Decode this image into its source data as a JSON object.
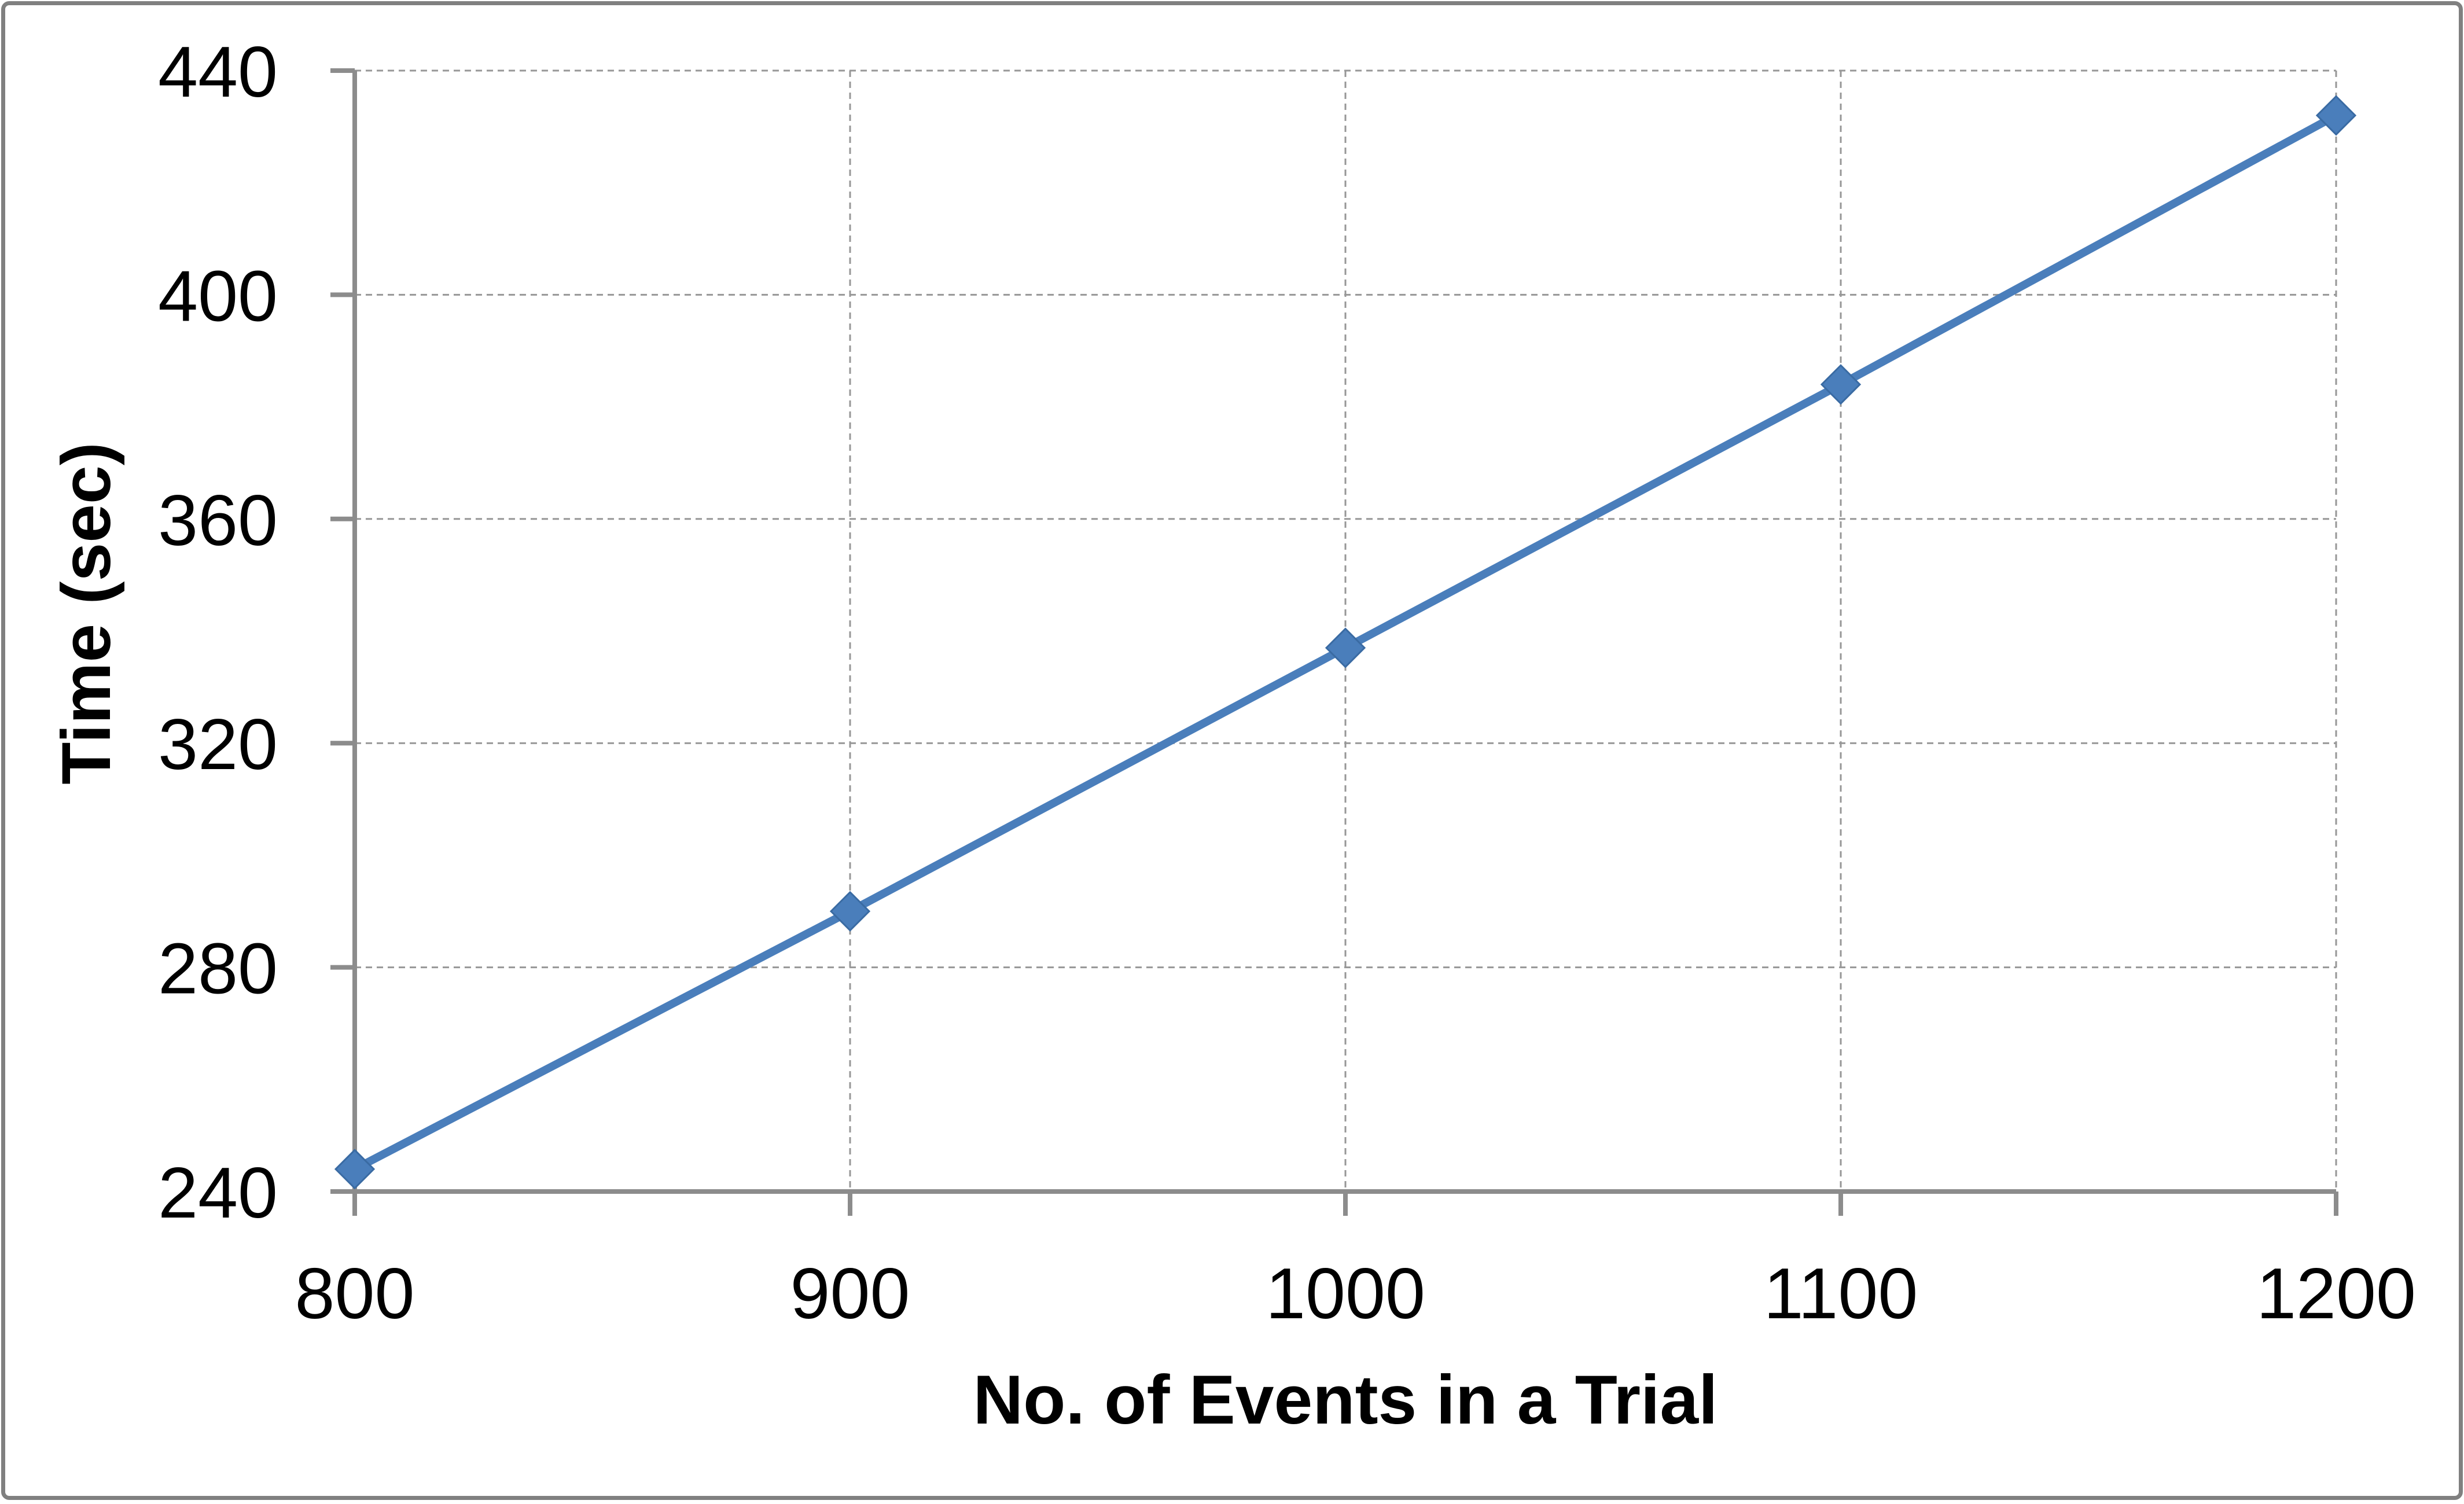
{
  "chart_data": {
    "type": "line",
    "x": [
      800,
      900,
      1000,
      1100,
      1200
    ],
    "series": [
      {
        "name": "Time",
        "values": [
          244,
          290,
          337,
          384,
          432
        ]
      }
    ],
    "title": "",
    "xlabel": "No. of Events in a Trial",
    "ylabel": "Time (sec)",
    "xlim": [
      800,
      1200
    ],
    "ylim": [
      240,
      440
    ],
    "x_ticks": [
      800,
      900,
      1000,
      1100,
      1200
    ],
    "y_ticks": [
      240,
      280,
      320,
      360,
      400,
      440
    ],
    "grid": "dashed",
    "legend_position": "none",
    "marker": "diamond",
    "colors": {
      "line": "#4A7EBB",
      "marker_fill": "#4A7EBB",
      "marker_edge": "#3A6BA3",
      "axis": "#8C8C8C",
      "gridline": "#979797",
      "text": "#000000",
      "frame_border": "#808080",
      "background": "#FFFFFF"
    }
  }
}
